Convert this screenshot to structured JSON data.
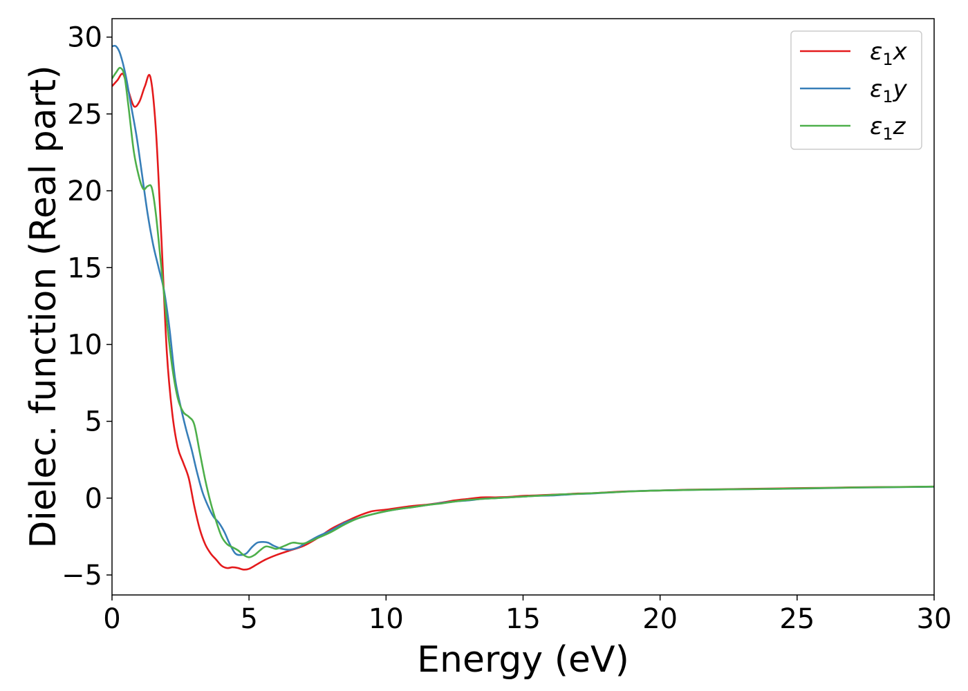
{
  "chart_data": {
    "type": "line",
    "title": "",
    "xlabel": "Energy (eV)",
    "ylabel": "Dielec. function (Real part)",
    "xlim": [
      0,
      30
    ],
    "ylim": [
      -6.3,
      31.2
    ],
    "xticks": [
      0,
      5,
      10,
      15,
      20,
      25,
      30
    ],
    "yticks": [
      -5,
      0,
      5,
      10,
      15,
      20,
      25,
      30
    ],
    "grid": false,
    "legend_position": "top-right",
    "series": [
      {
        "name": "ε₁x",
        "legend_base": "ε",
        "legend_sub": "1",
        "legend_var": "x",
        "color": "#e41a1c",
        "points": [
          [
            0,
            26.8
          ],
          [
            0.2,
            27.2
          ],
          [
            0.4,
            27.6
          ],
          [
            0.6,
            26.5
          ],
          [
            0.8,
            25.5
          ],
          [
            1.0,
            25.8
          ],
          [
            1.2,
            26.8
          ],
          [
            1.4,
            27.4
          ],
          [
            1.6,
            24.0
          ],
          [
            1.8,
            17.0
          ],
          [
            2.0,
            9.5
          ],
          [
            2.2,
            5.5
          ],
          [
            2.4,
            3.3
          ],
          [
            2.6,
            2.3
          ],
          [
            2.8,
            1.3
          ],
          [
            3.0,
            -0.5
          ],
          [
            3.2,
            -2.0
          ],
          [
            3.4,
            -3.0
          ],
          [
            3.6,
            -3.6
          ],
          [
            3.8,
            -4.0
          ],
          [
            4.0,
            -4.4
          ],
          [
            4.2,
            -4.55
          ],
          [
            4.4,
            -4.5
          ],
          [
            4.6,
            -4.55
          ],
          [
            4.8,
            -4.65
          ],
          [
            5.0,
            -4.6
          ],
          [
            5.3,
            -4.3
          ],
          [
            5.6,
            -4.0
          ],
          [
            6.0,
            -3.7
          ],
          [
            6.5,
            -3.4
          ],
          [
            7.0,
            -3.1
          ],
          [
            7.5,
            -2.6
          ],
          [
            8.0,
            -2.0
          ],
          [
            8.5,
            -1.55
          ],
          [
            9.0,
            -1.15
          ],
          [
            9.5,
            -0.85
          ],
          [
            10.0,
            -0.75
          ],
          [
            10.5,
            -0.62
          ],
          [
            11.0,
            -0.5
          ],
          [
            11.5,
            -0.42
          ],
          [
            12.0,
            -0.3
          ],
          [
            12.5,
            -0.15
          ],
          [
            13.0,
            -0.05
          ],
          [
            13.5,
            0.05
          ],
          [
            14.0,
            0.05
          ],
          [
            14.5,
            0.08
          ],
          [
            15.0,
            0.15
          ],
          [
            15.5,
            0.18
          ],
          [
            16.0,
            0.22
          ],
          [
            16.5,
            0.25
          ],
          [
            17.0,
            0.3
          ],
          [
            17.5,
            0.32
          ],
          [
            18.0,
            0.37
          ],
          [
            18.5,
            0.42
          ],
          [
            19.0,
            0.45
          ],
          [
            20.0,
            0.5
          ],
          [
            21.0,
            0.55
          ],
          [
            22.0,
            0.57
          ],
          [
            23.0,
            0.6
          ],
          [
            24.0,
            0.62
          ],
          [
            25.0,
            0.65
          ],
          [
            26.0,
            0.67
          ],
          [
            27.0,
            0.7
          ],
          [
            28.0,
            0.72
          ],
          [
            29.0,
            0.73
          ],
          [
            30.0,
            0.75
          ]
        ]
      },
      {
        "name": "ε₁y",
        "legend_base": "ε",
        "legend_sub": "1",
        "legend_var": "y",
        "color": "#377eb8",
        "points": [
          [
            0,
            29.4
          ],
          [
            0.15,
            29.4
          ],
          [
            0.3,
            28.9
          ],
          [
            0.5,
            27.5
          ],
          [
            0.7,
            25.5
          ],
          [
            0.9,
            23.5
          ],
          [
            1.1,
            21.0
          ],
          [
            1.3,
            18.5
          ],
          [
            1.5,
            16.5
          ],
          [
            1.7,
            15.0
          ],
          [
            1.9,
            13.5
          ],
          [
            2.1,
            11.0
          ],
          [
            2.3,
            7.8
          ],
          [
            2.5,
            6.0
          ],
          [
            2.7,
            4.5
          ],
          [
            2.9,
            3.2
          ],
          [
            3.1,
            1.7
          ],
          [
            3.3,
            0.4
          ],
          [
            3.5,
            -0.5
          ],
          [
            3.7,
            -1.2
          ],
          [
            3.9,
            -1.6
          ],
          [
            4.1,
            -2.2
          ],
          [
            4.3,
            -3.0
          ],
          [
            4.5,
            -3.6
          ],
          [
            4.7,
            -3.7
          ],
          [
            4.9,
            -3.6
          ],
          [
            5.1,
            -3.2
          ],
          [
            5.3,
            -2.9
          ],
          [
            5.5,
            -2.85
          ],
          [
            5.7,
            -2.9
          ],
          [
            5.9,
            -3.1
          ],
          [
            6.2,
            -3.3
          ],
          [
            6.5,
            -3.35
          ],
          [
            6.8,
            -3.2
          ],
          [
            7.0,
            -3.0
          ],
          [
            7.5,
            -2.5
          ],
          [
            8.0,
            -2.1
          ],
          [
            8.5,
            -1.6
          ],
          [
            9.0,
            -1.3
          ],
          [
            9.5,
            -1.05
          ],
          [
            10.0,
            -0.85
          ],
          [
            10.5,
            -0.7
          ],
          [
            11.0,
            -0.58
          ],
          [
            11.5,
            -0.45
          ],
          [
            12.0,
            -0.32
          ],
          [
            12.5,
            -0.22
          ],
          [
            13.0,
            -0.15
          ],
          [
            13.5,
            -0.05
          ],
          [
            14.0,
            0.0
          ],
          [
            14.5,
            0.05
          ],
          [
            15.0,
            0.1
          ],
          [
            15.5,
            0.15
          ],
          [
            16.0,
            0.17
          ],
          [
            16.5,
            0.22
          ],
          [
            17.0,
            0.27
          ],
          [
            17.5,
            0.3
          ],
          [
            18.0,
            0.35
          ],
          [
            18.5,
            0.4
          ],
          [
            19.0,
            0.45
          ],
          [
            20.0,
            0.5
          ],
          [
            21.0,
            0.53
          ],
          [
            22.0,
            0.56
          ],
          [
            23.0,
            0.58
          ],
          [
            24.0,
            0.6
          ],
          [
            25.0,
            0.62
          ],
          [
            26.0,
            0.65
          ],
          [
            27.0,
            0.68
          ],
          [
            28.0,
            0.7
          ],
          [
            29.0,
            0.72
          ],
          [
            30.0,
            0.74
          ]
        ]
      },
      {
        "name": "ε₁z",
        "legend_base": "ε",
        "legend_sub": "1",
        "legend_var": "z",
        "color": "#4daf4a",
        "points": [
          [
            0,
            27.3
          ],
          [
            0.15,
            27.7
          ],
          [
            0.3,
            28.0
          ],
          [
            0.45,
            27.5
          ],
          [
            0.6,
            25.5
          ],
          [
            0.8,
            22.5
          ],
          [
            1.0,
            20.8
          ],
          [
            1.15,
            20.1
          ],
          [
            1.3,
            20.3
          ],
          [
            1.45,
            20.2
          ],
          [
            1.6,
            18.5
          ],
          [
            1.8,
            15.0
          ],
          [
            2.0,
            11.5
          ],
          [
            2.2,
            8.5
          ],
          [
            2.4,
            6.5
          ],
          [
            2.6,
            5.6
          ],
          [
            2.8,
            5.3
          ],
          [
            3.0,
            4.8
          ],
          [
            3.2,
            3.0
          ],
          [
            3.4,
            1.2
          ],
          [
            3.6,
            -0.3
          ],
          [
            3.8,
            -1.5
          ],
          [
            4.0,
            -2.5
          ],
          [
            4.2,
            -3.0
          ],
          [
            4.4,
            -3.2
          ],
          [
            4.6,
            -3.4
          ],
          [
            4.8,
            -3.7
          ],
          [
            5.0,
            -3.85
          ],
          [
            5.2,
            -3.7
          ],
          [
            5.4,
            -3.4
          ],
          [
            5.6,
            -3.15
          ],
          [
            5.8,
            -3.2
          ],
          [
            6.0,
            -3.3
          ],
          [
            6.3,
            -3.1
          ],
          [
            6.6,
            -2.9
          ],
          [
            7.0,
            -2.95
          ],
          [
            7.5,
            -2.6
          ],
          [
            8.0,
            -2.2
          ],
          [
            8.5,
            -1.7
          ],
          [
            9.0,
            -1.3
          ],
          [
            9.5,
            -1.05
          ],
          [
            10.0,
            -0.85
          ],
          [
            10.5,
            -0.7
          ],
          [
            11.0,
            -0.58
          ],
          [
            11.5,
            -0.45
          ],
          [
            12.0,
            -0.35
          ],
          [
            12.5,
            -0.22
          ],
          [
            13.0,
            -0.12
          ],
          [
            13.5,
            -0.05
          ],
          [
            14.0,
            0.0
          ],
          [
            14.5,
            0.05
          ],
          [
            15.0,
            0.1
          ],
          [
            15.5,
            0.15
          ],
          [
            16.0,
            0.2
          ],
          [
            16.5,
            0.25
          ],
          [
            17.0,
            0.28
          ],
          [
            17.5,
            0.32
          ],
          [
            18.0,
            0.36
          ],
          [
            18.5,
            0.4
          ],
          [
            19.0,
            0.44
          ],
          [
            20.0,
            0.5
          ],
          [
            21.0,
            0.53
          ],
          [
            22.0,
            0.56
          ],
          [
            23.0,
            0.58
          ],
          [
            24.0,
            0.6
          ],
          [
            25.0,
            0.63
          ],
          [
            26.0,
            0.66
          ],
          [
            27.0,
            0.69
          ],
          [
            28.0,
            0.71
          ],
          [
            29.0,
            0.73
          ],
          [
            30.0,
            0.75
          ]
        ]
      }
    ]
  }
}
